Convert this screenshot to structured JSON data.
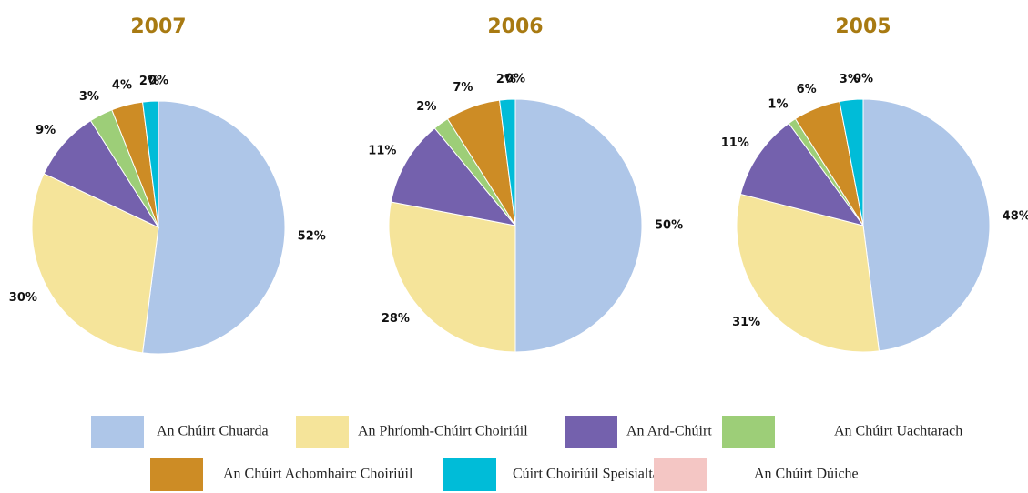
{
  "chart_data": {
    "type": "pie",
    "categories": [
      "An Chúirt Chuarda",
      "An Phríomh-Chúirt Choiriúil",
      "An Ard-Chúirt",
      "An Chúirt Uachtarach",
      "An Chúirt Achomhairc Choiriúil",
      "Cúirt Choiriúil Speisialta",
      "An Chúirt Dúiche"
    ],
    "colors": [
      "#aec6e8",
      "#f5e49a",
      "#7461ad",
      "#9dce78",
      "#cd8c25",
      "#00bcd8",
      "#f4c6c4"
    ],
    "series": [
      {
        "name": "2007",
        "values": [
          52,
          30,
          9,
          3,
          4,
          2,
          0
        ],
        "value_labels": [
          "52%",
          "30%",
          "9%",
          "3%",
          "4%",
          "2%",
          "0%"
        ]
      },
      {
        "name": "2006",
        "values": [
          50,
          28,
          11,
          2,
          7,
          2,
          0
        ],
        "value_labels": [
          "50%",
          "28%",
          "11%",
          "2%",
          "7%",
          "2%",
          "0%"
        ]
      },
      {
        "name": "2005",
        "values": [
          48,
          31,
          11,
          1,
          6,
          3,
          0
        ],
        "value_labels": [
          "48%",
          "31%",
          "11%",
          "1%",
          "6%",
          "3%",
          "0%"
        ]
      }
    ]
  }
}
